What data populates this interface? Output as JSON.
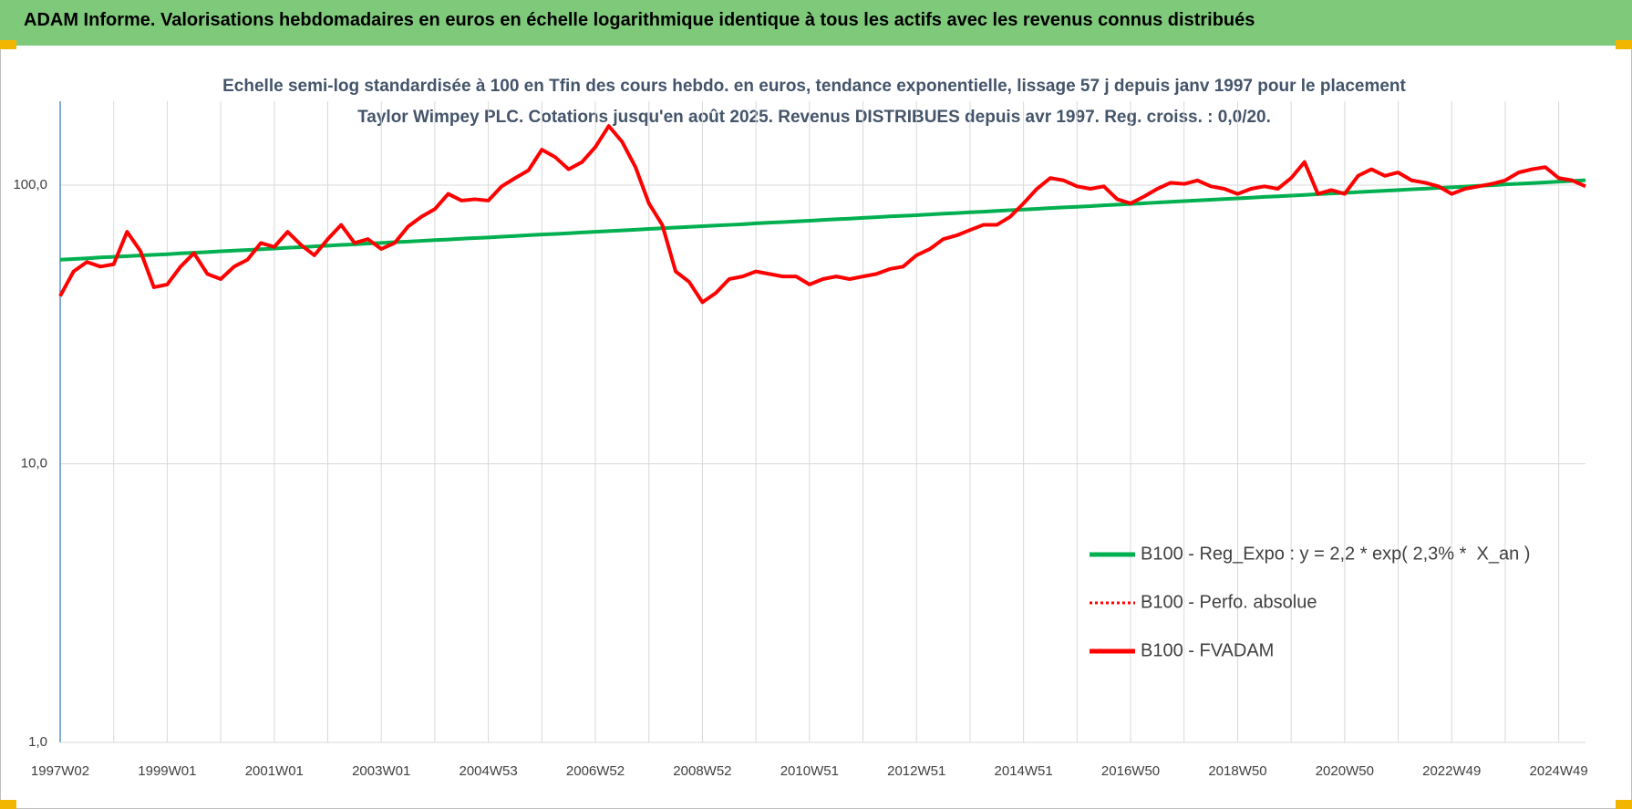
{
  "header": {
    "title": "ADAM Informe. Valorisations hebdomadaires en euros en échelle logarithmique identique à tous les actifs avec les revenus connus distribués"
  },
  "chart_data": {
    "type": "line",
    "title": "Echelle semi-log standardisée à 100 en Tfin des cours hebdo. en euros, tendance exponentielle, lissage 57 j depuis janv 1997 pour le placement Taylor Wimpey PLC. Cotations jusqu'en août 2025. Revenus DISTRIBUES depuis avr 1997. Reg. croiss. : 0,0/20.",
    "categories": [
      "1997W02",
      null,
      null,
      null,
      null,
      null,
      null,
      null,
      "1999W01",
      null,
      null,
      null,
      null,
      null,
      null,
      null,
      "2001W01",
      null,
      null,
      null,
      null,
      null,
      null,
      null,
      "2003W01",
      null,
      null,
      null,
      null,
      null,
      null,
      null,
      "2004W53",
      null,
      null,
      null,
      null,
      null,
      null,
      null,
      "2006W52",
      null,
      null,
      null,
      null,
      null,
      null,
      null,
      "2008W52",
      null,
      null,
      null,
      null,
      null,
      null,
      null,
      "2010W51",
      null,
      null,
      null,
      null,
      null,
      null,
      null,
      "2012W51",
      null,
      null,
      null,
      null,
      null,
      null,
      null,
      "2014W51",
      null,
      null,
      null,
      null,
      null,
      null,
      null,
      "2016W50",
      null,
      null,
      null,
      null,
      null,
      null,
      null,
      "2018W50",
      null,
      null,
      null,
      null,
      null,
      null,
      null,
      "2020W50",
      null,
      null,
      null,
      null,
      null,
      null,
      null,
      "2022W49",
      null,
      null,
      null,
      null,
      null,
      null,
      null,
      "2024W49",
      null,
      null
    ],
    "series": [
      {
        "name": "B100 - Reg_Expo : y = 2,2 * exp( 2,3% *  X_an )",
        "color": "#00b050",
        "linestyle": "solid",
        "values": [
          54.0,
          54.3,
          54.6,
          55.0,
          55.3,
          55.6,
          55.9,
          56.2,
          56.5,
          56.9,
          57.2,
          57.5,
          57.9,
          58.2,
          58.5,
          58.9,
          59.2,
          59.6,
          59.9,
          60.3,
          60.6,
          61.0,
          61.3,
          61.7,
          62.0,
          62.4,
          62.7,
          63.1,
          63.5,
          63.8,
          64.2,
          64.6,
          64.9,
          65.3,
          65.7,
          66.1,
          66.5,
          66.8,
          67.2,
          67.6,
          68.0,
          68.4,
          68.8,
          69.2,
          69.6,
          70.0,
          70.4,
          70.8,
          71.2,
          71.6,
          72.0,
          72.4,
          72.9,
          73.3,
          73.7,
          74.1,
          74.5,
          75.0,
          75.4,
          75.8,
          76.3,
          76.7,
          77.2,
          77.6,
          78.0,
          78.5,
          79.0,
          79.4,
          79.9,
          80.3,
          80.8,
          81.3,
          81.7,
          82.2,
          82.7,
          83.2,
          83.6,
          84.1,
          84.6,
          85.1,
          85.6,
          86.1,
          86.6,
          87.1,
          87.6,
          88.1,
          88.6,
          89.1,
          89.6,
          90.1,
          90.7,
          91.2,
          91.7,
          92.2,
          92.8,
          93.3,
          93.8,
          94.4,
          94.9,
          95.5,
          96.0,
          96.6,
          97.1,
          97.7,
          98.2,
          98.8,
          99.4,
          99.9,
          100.6,
          101.1,
          101.7,
          102.3,
          102.9,
          103.5,
          104.1
        ]
      },
      {
        "name": "B100 - Perfo. absolue",
        "color": "#ff0000",
        "linestyle": "dotted",
        "values": [
          40,
          49,
          53,
          51,
          52,
          68,
          58,
          43,
          44,
          51,
          57,
          48,
          46,
          51,
          54,
          62,
          60,
          68,
          61,
          56,
          64,
          72,
          62,
          64,
          59,
          62,
          71,
          77,
          82,
          93,
          88,
          89,
          88,
          99,
          106,
          113,
          134,
          126,
          114,
          121,
          137,
          163,
          143,
          116,
          86,
          72,
          49,
          45,
          38,
          41,
          46,
          47,
          49,
          48,
          47,
          47,
          44,
          46,
          47,
          46,
          47,
          48,
          50,
          51,
          56,
          59,
          64,
          66,
          69,
          72,
          72,
          77,
          86,
          97,
          106,
          104,
          99,
          97,
          99,
          89,
          86,
          91,
          97,
          102,
          101,
          104,
          99,
          97,
          93,
          97,
          99,
          97,
          106,
          121,
          93,
          96,
          93,
          108,
          114,
          108,
          111,
          104,
          102,
          99,
          93,
          97,
          99,
          101,
          104,
          111,
          114,
          116,
          106,
          104,
          99
        ]
      },
      {
        "name": "B100 - FVADAM",
        "color": "#ff0000",
        "linestyle": "solid",
        "values": [
          40,
          49,
          53,
          51,
          52,
          68,
          58,
          43,
          44,
          51,
          57,
          48,
          46,
          51,
          54,
          62,
          60,
          68,
          61,
          56,
          64,
          72,
          62,
          64,
          59,
          62,
          71,
          77,
          82,
          93,
          88,
          89,
          88,
          99,
          106,
          113,
          134,
          126,
          114,
          121,
          137,
          163,
          143,
          116,
          86,
          72,
          49,
          45,
          38,
          41,
          46,
          47,
          49,
          48,
          47,
          47,
          44,
          46,
          47,
          46,
          47,
          48,
          50,
          51,
          56,
          59,
          64,
          66,
          69,
          72,
          72,
          77,
          86,
          97,
          106,
          104,
          99,
          97,
          99,
          89,
          86,
          91,
          97,
          102,
          101,
          104,
          99,
          97,
          93,
          97,
          99,
          97,
          106,
          121,
          93,
          96,
          93,
          108,
          114,
          108,
          111,
          104,
          102,
          99,
          93,
          97,
          99,
          101,
          104,
          111,
          114,
          116,
          106,
          104,
          99
        ]
      }
    ],
    "log_scale": true,
    "ylim": [
      1,
      200
    ],
    "yticks": [
      {
        "value": 1,
        "label": "1,0"
      },
      {
        "value": 10,
        "label": "10,0"
      },
      {
        "value": 100,
        "label": "100,0"
      }
    ],
    "grid": true,
    "legend": "lower right"
  }
}
